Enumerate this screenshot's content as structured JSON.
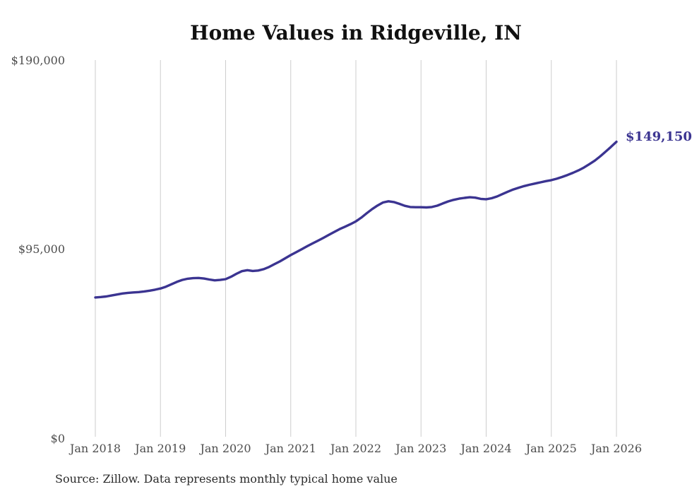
{
  "page": {
    "title": "Home Values in Ridgeville, IN",
    "end_value_label": "$149,150",
    "source_note": "Source: Zillow. Data represents monthly typical home value"
  },
  "colors": {
    "line": "#3b3491",
    "grid": "#cdcdcd",
    "axis_text": "#4d4d4d",
    "title_text": "#111111",
    "source_text": "#2b2b2b",
    "background": "#ffffff",
    "end_label_text": "#3b3491"
  },
  "chart_data": {
    "type": "line",
    "title": "Home Values in Ridgeville, IN",
    "series_name": "Typical home value",
    "frequency": "monthly",
    "start_month": "2018-01",
    "end_month": "2026-01",
    "xlabel": "",
    "ylabel": "",
    "ylim": [
      0,
      190000
    ],
    "grid": "vertical-only",
    "legend": "none",
    "end_value": 149150,
    "end_label": "$149,150",
    "y_ticks": [
      {
        "value": 0,
        "label": "$0"
      },
      {
        "value": 95000,
        "label": "$95,000"
      },
      {
        "value": 190000,
        "label": "$190,000"
      }
    ],
    "x_tick_labels": [
      "Jan 2018",
      "Jan 2019",
      "Jan 2020",
      "Jan 2021",
      "Jan 2022",
      "Jan 2023",
      "Jan 2024",
      "Jan 2025",
      "Jan 2026"
    ],
    "x_tick_month_indices": [
      0,
      12,
      24,
      36,
      48,
      60,
      72,
      84,
      96
    ],
    "values": [
      71000,
      71200,
      71500,
      72000,
      72500,
      73000,
      73300,
      73500,
      73700,
      74000,
      74400,
      74900,
      75500,
      76400,
      77600,
      78800,
      79800,
      80400,
      80700,
      80800,
      80500,
      80000,
      79600,
      79800,
      80200,
      81400,
      82900,
      84200,
      84700,
      84300,
      84500,
      85200,
      86300,
      87700,
      89100,
      90700,
      92300,
      93700,
      95200,
      96700,
      98100,
      99500,
      100900,
      102400,
      103900,
      105300,
      106500,
      107800,
      109200,
      111100,
      113300,
      115400,
      117200,
      118700,
      119300,
      118900,
      118000,
      117000,
      116400,
      116300,
      116300,
      116200,
      116400,
      117100,
      118200,
      119200,
      120000,
      120600,
      121000,
      121300,
      121100,
      120500,
      120300,
      120800,
      121700,
      122900,
      124100,
      125200,
      126100,
      126900,
      127600,
      128200,
      128800,
      129400,
      129900,
      130600,
      131500,
      132500,
      133600,
      134800,
      136200,
      137900,
      139700,
      141800,
      144200,
      146600,
      149150
    ]
  }
}
